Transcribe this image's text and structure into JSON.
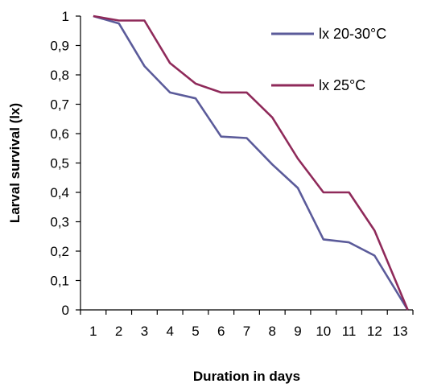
{
  "chart_data": {
    "type": "line",
    "xlabel": "Duration in days",
    "ylabel": "Larval survival (lx)",
    "categories": [
      "1",
      "2",
      "3",
      "4",
      "5",
      "6",
      "7",
      "8",
      "9",
      "10",
      "11",
      "12",
      "13"
    ],
    "ylim": [
      0,
      1
    ],
    "yticks": [
      "0",
      "0,1",
      "0,2",
      "0,3",
      "0,4",
      "0,5",
      "0,6",
      "0,7",
      "0,8",
      "0,9",
      "1"
    ],
    "grid": false,
    "legend_position": "top-right",
    "series": [
      {
        "name": "lx 20-30°C",
        "color": "#5b5b9a",
        "x": [
          1,
          2,
          3,
          4,
          5,
          6,
          7,
          8,
          9,
          10,
          11,
          12,
          13.3
        ],
        "values": [
          1,
          0.975,
          0.83,
          0.74,
          0.72,
          0.59,
          0.585,
          0.495,
          0.415,
          0.24,
          0.23,
          0.185,
          0
        ]
      },
      {
        "name": "lx 25°C",
        "color": "#8f2a5a",
        "x": [
          1,
          2,
          3,
          4,
          5,
          6,
          7,
          8,
          9,
          10,
          11,
          12,
          13.3
        ],
        "values": [
          1,
          0.985,
          0.985,
          0.84,
          0.77,
          0.74,
          0.74,
          0.655,
          0.515,
          0.4,
          0.4,
          0.27,
          0
        ]
      }
    ]
  }
}
